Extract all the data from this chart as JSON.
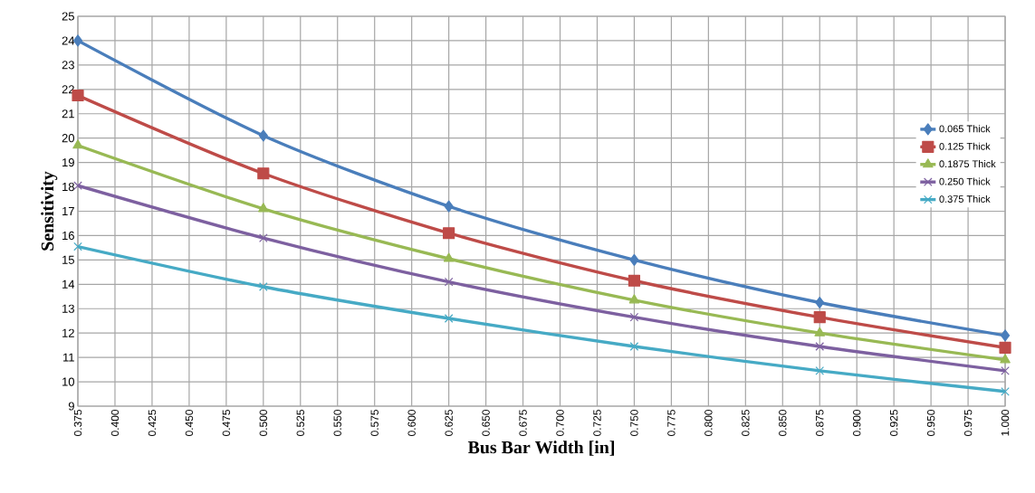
{
  "chart_data": {
    "type": "line",
    "xlabel": "Bus Bar Width [in]",
    "ylabel": "Sensitivity",
    "x": [
      0.375,
      0.5,
      0.625,
      0.75,
      0.875,
      1.0
    ],
    "series": [
      {
        "name": "0.065 Thick",
        "color": "#4a7ebb",
        "marker": "diamond",
        "values": [
          24.0,
          20.1,
          17.2,
          15.0,
          13.25,
          11.9
        ]
      },
      {
        "name": "0.125 Thick",
        "color": "#be4b48",
        "marker": "square",
        "values": [
          21.75,
          18.55,
          16.1,
          14.15,
          12.65,
          11.4
        ]
      },
      {
        "name": "0.1875 Thick",
        "color": "#98b954",
        "marker": "triangle",
        "values": [
          19.7,
          17.1,
          15.05,
          13.35,
          12.0,
          10.9
        ]
      },
      {
        "name": "0.250 Thick",
        "color": "#7d60a0",
        "marker": "cross",
        "values": [
          18.05,
          15.9,
          14.1,
          12.65,
          11.45,
          10.45
        ]
      },
      {
        "name": "0.375 Thick",
        "color": "#46aac5",
        "marker": "cross",
        "values": [
          15.55,
          13.9,
          12.6,
          11.45,
          10.45,
          9.6
        ]
      }
    ],
    "xlim": [
      0.375,
      1.0
    ],
    "ylim": [
      9,
      25
    ],
    "xticks": [
      {
        "value": 0.375,
        "label": "0.375"
      },
      {
        "value": 0.4,
        "label": "0.400"
      },
      {
        "value": 0.425,
        "label": "0.425"
      },
      {
        "value": 0.45,
        "label": "0.450"
      },
      {
        "value": 0.475,
        "label": "0.475"
      },
      {
        "value": 0.5,
        "label": "0.500"
      },
      {
        "value": 0.525,
        "label": "0.525"
      },
      {
        "value": 0.55,
        "label": "0.550"
      },
      {
        "value": 0.575,
        "label": "0.575"
      },
      {
        "value": 0.6,
        "label": "0.600"
      },
      {
        "value": 0.625,
        "label": "0.625"
      },
      {
        "value": 0.65,
        "label": "0.650"
      },
      {
        "value": 0.675,
        "label": "0.675"
      },
      {
        "value": 0.7,
        "label": "0.700"
      },
      {
        "value": 0.725,
        "label": "0.725"
      },
      {
        "value": 0.75,
        "label": "0.750"
      },
      {
        "value": 0.775,
        "label": "0.775"
      },
      {
        "value": 0.8,
        "label": "0.800"
      },
      {
        "value": 0.825,
        "label": "0.825"
      },
      {
        "value": 0.85,
        "label": "0.850"
      },
      {
        "value": 0.875,
        "label": "0.875"
      },
      {
        "value": 0.9,
        "label": "0.900"
      },
      {
        "value": 0.925,
        "label": "0.925"
      },
      {
        "value": 0.95,
        "label": "0.950"
      },
      {
        "value": 0.975,
        "label": "0.975"
      },
      {
        "value": 1.0,
        "label": "1.000"
      }
    ],
    "yticks": [
      9,
      10,
      11,
      12,
      13,
      14,
      15,
      16,
      17,
      18,
      19,
      20,
      21,
      22,
      23,
      24,
      25
    ],
    "grid": true,
    "legend": "right",
    "line_style": "solid"
  }
}
